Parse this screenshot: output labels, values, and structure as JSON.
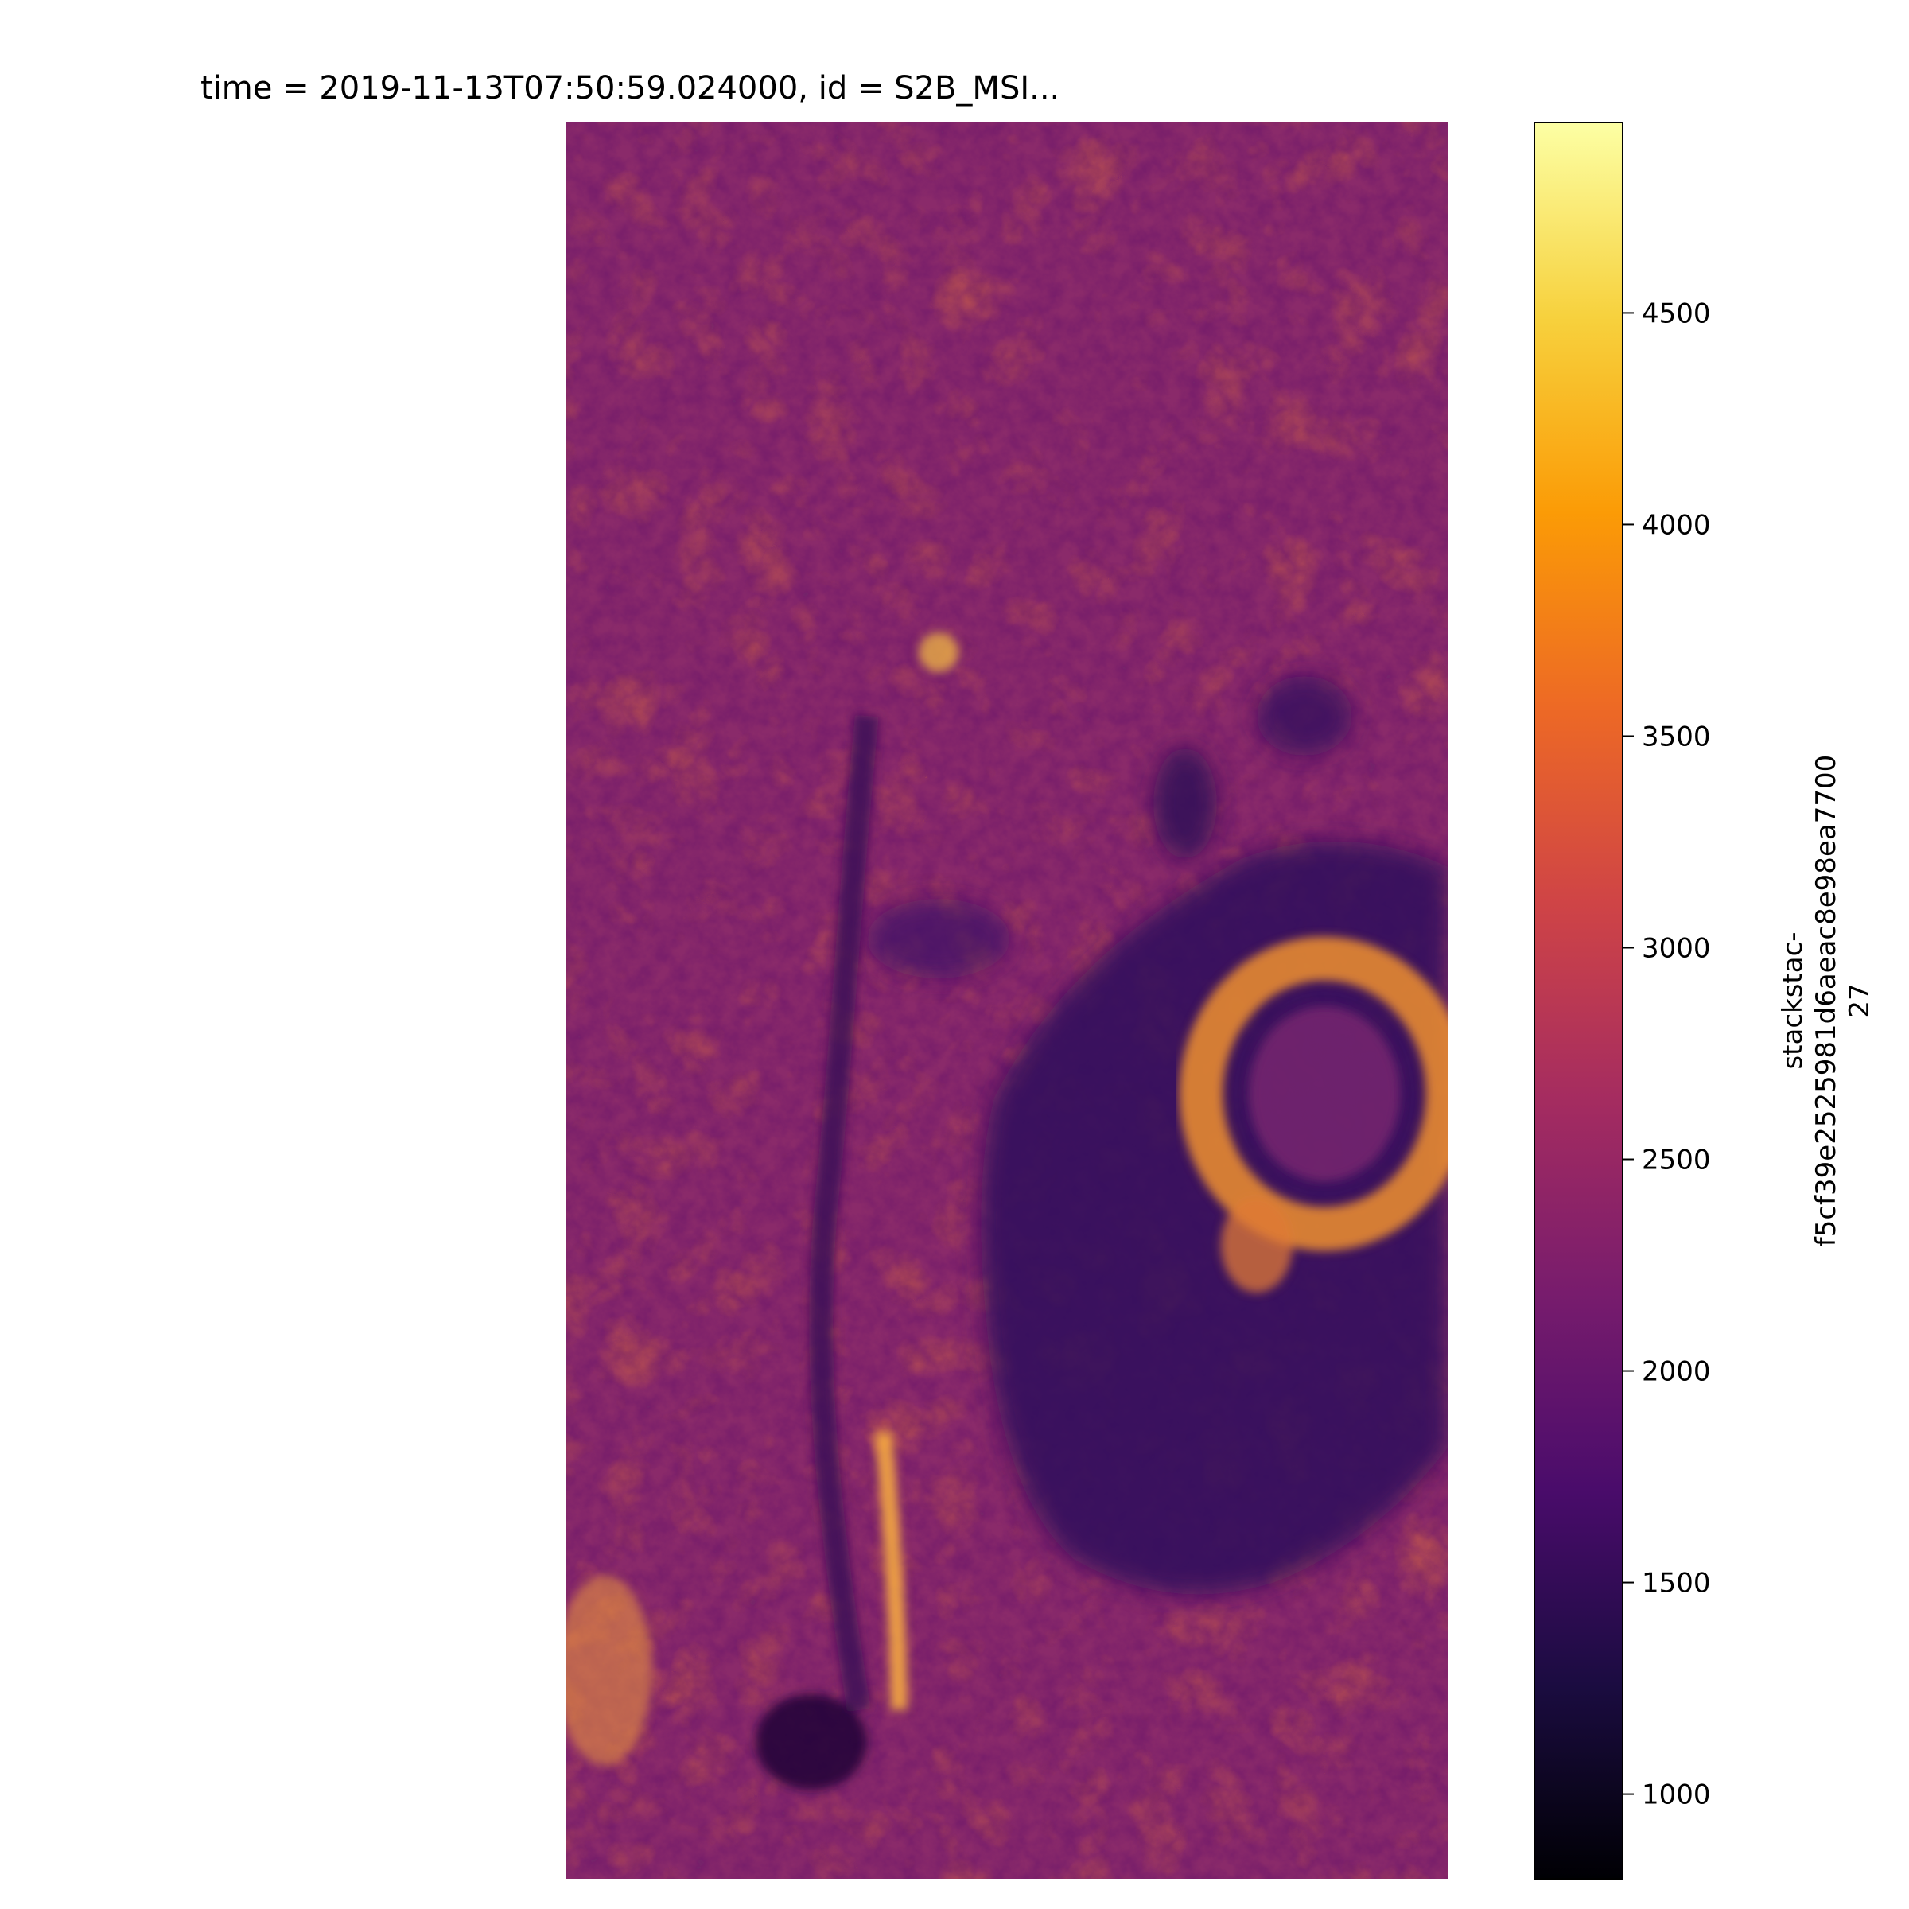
{
  "chart_data": {
    "type": "heatmap",
    "title": "time = 2019-11-13T07:50:59.024000, id = S2B_MSI...",
    "xlabel": "",
    "ylabel": "",
    "colormap": "inferno",
    "colormap_stops": [
      "#000004",
      "#1b0c41",
      "#4a0c6b",
      "#781c6d",
      "#a52c60",
      "#cf4446",
      "#ed6925",
      "#fb9b06",
      "#f7d13d",
      "#fcffa4"
    ],
    "colorbar": {
      "label": [
        "stackstac-",
        "f5cf39e2525981d6aeac8e98ea7700",
        "27"
      ],
      "vmin": 800,
      "vmax": 4950,
      "ticks": [
        1000,
        1500,
        2000,
        2500,
        3000,
        3500,
        4000,
        4500
      ],
      "tick_labels": [
        "1000",
        "1500",
        "2000",
        "2500",
        "3000",
        "3500",
        "4000",
        "4500"
      ]
    },
    "image_description": "Satellite raster band; mostly purple-orange field values around 2000-3500 with dark low-value patches near the center-right, a bright ring feature on the right, and bright streaks in the lower-left river valley.",
    "axes_visible": false
  }
}
